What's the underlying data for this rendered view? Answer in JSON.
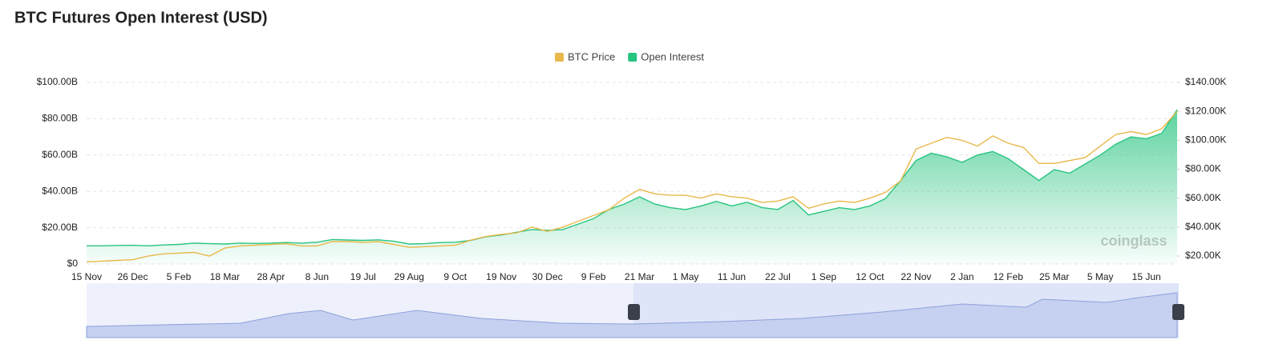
{
  "chart_data": {
    "type": "line_area",
    "title": "BTC Futures Open Interest (USD)",
    "watermark": "coinglass",
    "legend": "top",
    "grid": true,
    "categories": [
      "15 Nov",
      null,
      null,
      "26 Dec",
      null,
      null,
      "5 Feb",
      null,
      null,
      "18 Mar",
      null,
      null,
      "28 Apr",
      null,
      null,
      "8 Jun",
      null,
      null,
      "19 Jul",
      null,
      null,
      "29 Aug",
      null,
      null,
      "9 Oct",
      null,
      null,
      "19 Nov",
      null,
      null,
      "30 Dec",
      null,
      null,
      "9 Feb",
      null,
      null,
      "21 Mar",
      null,
      null,
      "1 May",
      null,
      null,
      "11 Jun",
      null,
      null,
      "22 Jul",
      null,
      null,
      "1 Sep",
      null,
      null,
      "12 Oct",
      null,
      null,
      "22 Nov",
      null,
      null,
      "2 Jan",
      null,
      null,
      "12 Feb",
      null,
      null,
      "25 Mar",
      null,
      null,
      "5 May",
      null,
      null,
      "15 Jun",
      null,
      null
    ],
    "ylim": [
      0,
      100000000000.0
    ],
    "yticks": [
      {
        "value": 0,
        "label": "$0"
      },
      {
        "value": 20000000000.0,
        "label": "$20.00B"
      },
      {
        "value": 40000000000.0,
        "label": "$40.00B"
      },
      {
        "value": 60000000000.0,
        "label": "$60.00B"
      },
      {
        "value": 80000000000.0,
        "label": "$80.00B"
      },
      {
        "value": 100000000000.0,
        "label": "$100.00B"
      }
    ],
    "y2lim": [
      14500,
      140000
    ],
    "y2ticks": [
      {
        "value": 20000,
        "label": "$20.00K"
      },
      {
        "value": 40000,
        "label": "$40.00K"
      },
      {
        "value": 60000,
        "label": "$60.00K"
      },
      {
        "value": 80000,
        "label": "$80.00K"
      },
      {
        "value": 100000,
        "label": "$100.00K"
      },
      {
        "value": 120000,
        "label": "$120.00K"
      },
      {
        "value": 140000,
        "label": "$140.00K"
      }
    ],
    "series": [
      {
        "name": "BTC Price",
        "color": "#e8b84a",
        "axis": "y2",
        "values": [
          16000,
          16500,
          17000,
          17500,
          20000,
          21500,
          22000,
          22500,
          20000,
          25500,
          27000,
          27500,
          28000,
          28500,
          27000,
          27000,
          30000,
          30000,
          29500,
          30000,
          28000,
          26000,
          26500,
          27000,
          27500,
          31000,
          33500,
          35000,
          36000,
          40000,
          37000,
          40000,
          44000,
          48000,
          52000,
          60000,
          66000,
          63000,
          62000,
          62000,
          60000,
          63000,
          61000,
          60000,
          57000,
          58000,
          61000,
          53000,
          56000,
          58000,
          57000,
          60000,
          64000,
          72000,
          94000,
          98000,
          102000,
          100000,
          96000,
          103000,
          98000,
          95000,
          84000,
          84000,
          86000,
          88000,
          96000,
          104000,
          106000,
          104000,
          108000,
          120000
        ]
      },
      {
        "name": "Open Interest",
        "color": "#27c47f",
        "values": [
          10000000000.0,
          10000000000.0,
          10200000000.0,
          10300000000.0,
          10000000000.0,
          10500000000.0,
          10800000000.0,
          11500000000.0,
          11200000000.0,
          11000000000.0,
          11500000000.0,
          11300000000.0,
          11500000000.0,
          11800000000.0,
          11500000000.0,
          12000000000.0,
          13500000000.0,
          13200000000.0,
          13000000000.0,
          13300000000.0,
          12500000000.0,
          11000000000.0,
          11200000000.0,
          11800000000.0,
          12000000000.0,
          13000000000.0,
          15000000000.0,
          16000000000.0,
          17500000000.0,
          19000000000.0,
          18500000000.0,
          19000000000.0,
          22000000000.0,
          25000000000.0,
          30000000000.0,
          33000000000.0,
          37000000000.0,
          33000000000.0,
          31000000000.0,
          30000000000.0,
          32000000000.0,
          34500000000.0,
          32000000000.0,
          34000000000.0,
          31000000000.0,
          30000000000.0,
          35000000000.0,
          27000000000.0,
          29000000000.0,
          31000000000.0,
          30000000000.0,
          32000000000.0,
          36000000000.0,
          46000000000.0,
          57000000000.0,
          61000000000.0,
          59000000000.0,
          56000000000.0,
          60000000000.0,
          62000000000.0,
          58000000000.0,
          52000000000.0,
          46000000000.0,
          52000000000.0,
          50000000000.0,
          55000000000.0,
          60000000000.0,
          66000000000.0,
          70000000000.0,
          69000000000.0,
          72000000000.0,
          85000000000.0
        ]
      }
    ]
  }
}
